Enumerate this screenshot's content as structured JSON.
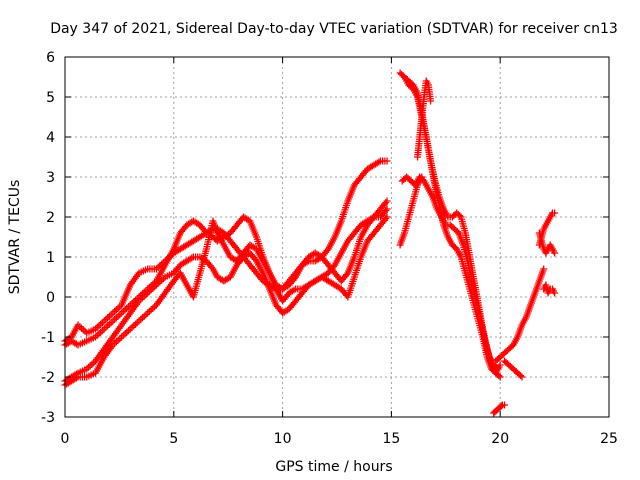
{
  "chart_data": {
    "type": "scatter",
    "title": "Day 347 of 2021, Sidereal Day-to-day VTEC variation (SDTVAR) for receiver cn13",
    "xlabel": "GPS time / hours",
    "ylabel": "SDTVAR / TECUs",
    "xlim": [
      0,
      25
    ],
    "ylim": [
      -3,
      6
    ],
    "xticks": [
      0,
      5,
      10,
      15,
      20,
      25
    ],
    "yticks": [
      -3,
      -2,
      -1,
      0,
      1,
      2,
      3,
      4,
      5,
      6
    ],
    "xtick_labels": [
      "0",
      "5",
      "10",
      "15",
      "20",
      "25"
    ],
    "ytick_labels": [
      "-3",
      "-2",
      "-1",
      "0",
      "1",
      "2",
      "3",
      "4",
      "5",
      "6"
    ],
    "grid": true,
    "marker": "+",
    "color": "#ff0000",
    "series": [
      {
        "x": [
          0.0,
          0.3,
          0.6,
          1.0,
          1.4,
          1.8,
          2.2,
          2.6,
          3.0,
          3.4,
          3.8,
          4.2,
          4.6,
          5.0,
          5.3,
          5.6,
          5.9,
          6.2,
          6.5,
          6.8,
          7.0,
          7.3,
          7.6,
          7.9,
          8.2,
          8.5,
          8.8,
          9.1,
          9.4,
          9.7,
          10.0,
          10.3,
          10.6,
          10.9,
          11.2,
          11.5,
          11.8,
          12.1,
          12.4,
          12.7,
          13.0,
          13.3,
          13.6,
          13.9,
          14.2,
          14.5,
          14.8
        ],
        "y": [
          -1.1,
          -1.0,
          -0.7,
          -0.9,
          -0.8,
          -0.6,
          -0.4,
          -0.2,
          0.3,
          0.6,
          0.7,
          0.7,
          0.9,
          1.1,
          1.2,
          1.3,
          1.4,
          1.5,
          1.6,
          1.7,
          1.7,
          1.6,
          1.4,
          1.2,
          1.0,
          0.8,
          0.6,
          0.4,
          0.3,
          0.2,
          0.2,
          0.4,
          0.6,
          0.8,
          0.9,
          0.9,
          1.0,
          1.2,
          1.5,
          1.9,
          2.4,
          2.8,
          3.0,
          3.2,
          3.3,
          3.4,
          3.4
        ]
      },
      {
        "x": [
          0.0,
          0.3,
          0.6,
          1.0,
          1.4,
          1.8,
          2.2,
          2.6,
          3.0,
          3.4,
          3.8,
          4.2,
          4.6,
          5.0,
          5.3,
          5.6,
          5.9,
          6.2,
          6.5,
          6.8,
          7.0,
          7.3,
          7.6,
          7.9,
          8.2,
          8.5,
          8.8,
          9.1,
          9.4,
          9.7,
          10.0,
          10.3,
          10.6,
          10.9,
          11.2,
          11.5,
          11.8,
          12.1,
          12.4,
          12.7,
          13.0,
          13.3,
          13.6,
          13.9,
          14.2,
          14.5,
          14.8
        ],
        "y": [
          -1.2,
          -1.1,
          -1.2,
          -1.1,
          -1.0,
          -0.8,
          -0.6,
          -0.4,
          -0.2,
          0.0,
          0.2,
          0.4,
          0.8,
          1.2,
          1.6,
          1.8,
          1.9,
          1.8,
          1.6,
          1.5,
          1.4,
          1.5,
          1.6,
          1.8,
          2.0,
          1.9,
          1.5,
          1.0,
          0.6,
          0.3,
          0.2,
          0.3,
          0.5,
          0.8,
          1.0,
          1.1,
          1.0,
          0.8,
          0.6,
          0.4,
          0.6,
          1.0,
          1.5,
          1.8,
          2.0,
          2.2,
          2.4
        ]
      },
      {
        "x": [
          0.0,
          0.3,
          0.6,
          1.0,
          1.4,
          1.8,
          2.2,
          2.6,
          3.0,
          3.4,
          3.8,
          4.2,
          4.6,
          5.0,
          5.3,
          5.6,
          5.9,
          6.2,
          6.5,
          6.8,
          7.0,
          7.3,
          7.6,
          7.9,
          8.2,
          8.5,
          8.8,
          9.1,
          9.4,
          9.7,
          10.0,
          10.3,
          10.6,
          10.9,
          11.2,
          11.5,
          11.8,
          12.1,
          12.4,
          12.7,
          13.0,
          13.3,
          13.6,
          13.9,
          14.2,
          14.5,
          14.8
        ],
        "y": [
          -2.1,
          -2.0,
          -1.9,
          -1.8,
          -1.6,
          -1.3,
          -1.0,
          -0.7,
          -0.4,
          -0.1,
          0.1,
          0.3,
          0.5,
          0.6,
          0.8,
          0.9,
          1.0,
          1.0,
          0.9,
          0.7,
          0.5,
          0.4,
          0.5,
          0.8,
          1.0,
          1.1,
          0.9,
          0.6,
          0.2,
          -0.2,
          -0.4,
          -0.3,
          -0.1,
          0.1,
          0.3,
          0.4,
          0.5,
          0.6,
          0.8,
          1.1,
          1.4,
          1.6,
          1.8,
          1.9,
          2.0,
          2.0,
          2.2
        ]
      },
      {
        "x": [
          0.0,
          0.3,
          0.6,
          1.0,
          1.4,
          1.8,
          2.2,
          2.6,
          3.0,
          3.4,
          3.8,
          4.2,
          4.6,
          5.0,
          5.3,
          5.6,
          5.9,
          6.2,
          6.5,
          6.8,
          7.0,
          7.3,
          7.6,
          7.9,
          8.2,
          8.5,
          8.8,
          9.1,
          9.4,
          9.7,
          10.0,
          10.3,
          10.6,
          10.9,
          11.2,
          11.5,
          11.8,
          12.1,
          12.4,
          12.7,
          13.0,
          13.3,
          13.6,
          13.9,
          14.2,
          14.5,
          14.8
        ],
        "y": [
          -2.2,
          -2.1,
          -2.0,
          -2.0,
          -1.9,
          -1.5,
          -1.2,
          -1.0,
          -0.8,
          -0.6,
          -0.4,
          -0.2,
          0.1,
          0.4,
          0.6,
          0.3,
          0.0,
          0.6,
          1.2,
          1.9,
          1.6,
          1.3,
          1.0,
          0.9,
          1.1,
          1.3,
          1.2,
          0.9,
          0.6,
          0.2,
          -0.1,
          0.1,
          0.2,
          0.2,
          0.3,
          0.4,
          0.5,
          0.4,
          0.3,
          0.2,
          0.0,
          0.5,
          1.0,
          1.4,
          1.6,
          1.8,
          2.0
        ]
      },
      {
        "x": [
          15.4,
          15.6,
          15.8,
          16.0,
          16.2,
          16.4,
          16.6,
          16.8,
          17.0,
          17.2,
          17.4,
          17.6,
          17.8,
          18.0,
          18.2,
          18.4,
          18.6,
          18.8,
          19.0,
          19.2,
          19.4,
          19.6,
          19.8,
          20.0
        ],
        "y": [
          5.6,
          5.5,
          5.3,
          5.2,
          5.0,
          4.5,
          4.0,
          3.4,
          2.8,
          2.3,
          1.8,
          1.5,
          1.3,
          1.2,
          1.0,
          0.6,
          0.2,
          -0.2,
          -0.6,
          -1.0,
          -1.5,
          -1.8,
          -1.9,
          -1.7
        ]
      },
      {
        "x": [
          15.6,
          15.8,
          16.0,
          16.2,
          16.4,
          16.6,
          16.8,
          17.0,
          17.2,
          17.4,
          17.6,
          17.8,
          18.0,
          18.2,
          18.4,
          18.6,
          18.8,
          19.0,
          19.2,
          19.4,
          19.6,
          19.8,
          20.0
        ],
        "y": [
          5.5,
          5.4,
          5.3,
          5.1,
          4.6,
          4.0,
          3.4,
          2.9,
          2.5,
          2.2,
          2.0,
          2.0,
          2.1,
          2.0,
          1.6,
          1.0,
          0.4,
          -0.2,
          -0.8,
          -1.3,
          -1.7,
          -1.9,
          -2.0
        ]
      },
      {
        "x": [
          15.5,
          15.7,
          15.9,
          16.1,
          16.3,
          16.5,
          16.7,
          16.9,
          17.1,
          17.3,
          17.5,
          17.7,
          17.9,
          18.1,
          18.3,
          18.5,
          18.7,
          18.9,
          19.1,
          19.3,
          19.5,
          19.7,
          19.9
        ],
        "y": [
          2.9,
          3.0,
          2.9,
          2.8,
          3.0,
          2.9,
          2.7,
          2.5,
          2.2,
          2.0,
          1.8,
          1.8,
          1.7,
          1.6,
          1.3,
          0.9,
          0.4,
          -0.1,
          -0.6,
          -1.1,
          -1.5,
          -1.7,
          -1.8
        ]
      },
      {
        "x": [
          15.4,
          15.6,
          15.8,
          16.0,
          16.2,
          16.4
        ],
        "y": [
          1.3,
          1.6,
          2.0,
          2.4,
          2.8,
          3.0
        ]
      },
      {
        "x": [
          16.2,
          16.3,
          16.4,
          16.5,
          16.6,
          16.7,
          16.8
        ],
        "y": [
          3.5,
          4.0,
          4.5,
          5.0,
          5.4,
          5.3,
          4.9
        ]
      },
      {
        "x": [
          19.8,
          20.0,
          20.2,
          20.4,
          20.6,
          20.8,
          21.0,
          21.2,
          21.4,
          21.6,
          21.8,
          22.0
        ],
        "y": [
          -1.6,
          -1.5,
          -1.4,
          -1.3,
          -1.2,
          -1.0,
          -0.7,
          -0.5,
          -0.2,
          0.1,
          0.4,
          0.7
        ]
      },
      {
        "x": [
          20.2,
          20.4,
          20.6,
          20.8,
          21.0
        ],
        "y": [
          -1.6,
          -1.7,
          -1.8,
          -1.9,
          -2.0
        ]
      },
      {
        "x": [
          19.7,
          19.8,
          19.9,
          20.0,
          20.1,
          20.2
        ],
        "y": [
          -2.9,
          -2.85,
          -2.8,
          -2.75,
          -2.7,
          -2.7
        ]
      },
      {
        "x": [
          21.8,
          21.9,
          22.0,
          22.1,
          22.2,
          22.3,
          22.4,
          22.5
        ],
        "y": [
          1.3,
          1.5,
          1.7,
          1.8,
          1.9,
          2.0,
          2.1,
          2.1
        ]
      },
      {
        "x": [
          21.8,
          21.9,
          22.0,
          22.1,
          22.2,
          22.3,
          22.4,
          22.5
        ],
        "y": [
          1.6,
          1.4,
          1.2,
          1.1,
          1.2,
          1.3,
          1.2,
          1.1
        ]
      },
      {
        "x": [
          22.0,
          22.1,
          22.2,
          22.3,
          22.4,
          22.5
        ],
        "y": [
          0.2,
          0.3,
          0.1,
          0.2,
          0.2,
          0.1
        ]
      }
    ]
  }
}
